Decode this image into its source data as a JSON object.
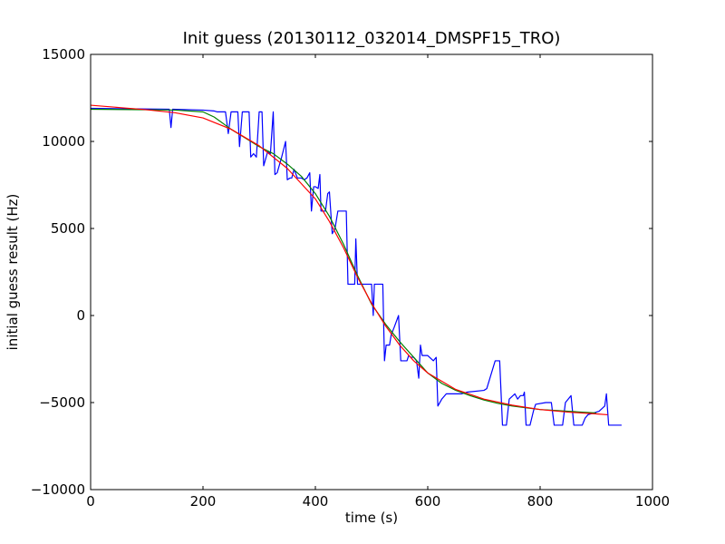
{
  "chart_data": {
    "type": "line",
    "title": "Init guess (20130112_032014_DMSPF15_TRO)",
    "xlabel": "time (s)",
    "ylabel": "initial guess result (Hz)",
    "xlim": [
      0,
      1000
    ],
    "ylim": [
      -10000,
      15000
    ],
    "x_ticks": [
      0,
      200,
      400,
      600,
      800,
      1000
    ],
    "y_ticks": [
      -10000,
      -5000,
      0,
      5000,
      10000,
      15000
    ],
    "x_tick_labels": [
      "0",
      "200",
      "400",
      "600",
      "800",
      "1000"
    ],
    "y_tick_labels": [
      "−10000",
      "−5000",
      "0",
      "5000",
      "10000",
      "15000"
    ],
    "grid": false,
    "series": [
      {
        "color": "#0000ff",
        "points": [
          [
            0,
            11900
          ],
          [
            140,
            11850
          ],
          [
            143,
            10800
          ],
          [
            146,
            11850
          ],
          [
            200,
            11800
          ],
          [
            220,
            11750
          ],
          [
            225,
            11700
          ],
          [
            240,
            11700
          ],
          [
            245,
            10450
          ],
          [
            250,
            11700
          ],
          [
            262,
            11700
          ],
          [
            265,
            9700
          ],
          [
            270,
            11700
          ],
          [
            282,
            11700
          ],
          [
            285,
            9100
          ],
          [
            290,
            9300
          ],
          [
            295,
            9100
          ],
          [
            300,
            11700
          ],
          [
            305,
            11700
          ],
          [
            308,
            8600
          ],
          [
            315,
            9400
          ],
          [
            320,
            9300
          ],
          [
            325,
            11700
          ],
          [
            328,
            8100
          ],
          [
            332,
            8200
          ],
          [
            340,
            9100
          ],
          [
            347,
            10000
          ],
          [
            350,
            7800
          ],
          [
            355,
            7900
          ],
          [
            358,
            7900
          ],
          [
            362,
            8400
          ],
          [
            368,
            7900
          ],
          [
            375,
            7900
          ],
          [
            380,
            7800
          ],
          [
            385,
            7900
          ],
          [
            390,
            8200
          ],
          [
            393,
            6000
          ],
          [
            397,
            7400
          ],
          [
            400,
            7400
          ],
          [
            405,
            7300
          ],
          [
            408,
            8100
          ],
          [
            410,
            6000
          ],
          [
            415,
            6000
          ],
          [
            418,
            6000
          ],
          [
            422,
            7000
          ],
          [
            425,
            7100
          ],
          [
            430,
            4700
          ],
          [
            435,
            5000
          ],
          [
            440,
            6000
          ],
          [
            455,
            6000
          ],
          [
            458,
            1800
          ],
          [
            462,
            1800
          ],
          [
            470,
            1800
          ],
          [
            472,
            4400
          ],
          [
            475,
            1800
          ],
          [
            480,
            1800
          ],
          [
            490,
            1800
          ],
          [
            500,
            1800
          ],
          [
            503,
            0
          ],
          [
            505,
            1800
          ],
          [
            520,
            1800
          ],
          [
            523,
            -2600
          ],
          [
            526,
            -1700
          ],
          [
            532,
            -1700
          ],
          [
            535,
            -1100
          ],
          [
            540,
            -700
          ],
          [
            548,
            0
          ],
          [
            552,
            -2600
          ],
          [
            558,
            -2600
          ],
          [
            563,
            -2600
          ],
          [
            566,
            -2300
          ],
          [
            570,
            -2400
          ],
          [
            575,
            -2400
          ],
          [
            580,
            -2600
          ],
          [
            584,
            -3600
          ],
          [
            587,
            -1700
          ],
          [
            590,
            -2300
          ],
          [
            600,
            -2300
          ],
          [
            610,
            -2600
          ],
          [
            615,
            -2400
          ],
          [
            618,
            -5200
          ],
          [
            625,
            -4800
          ],
          [
            633,
            -4500
          ],
          [
            660,
            -4500
          ],
          [
            670,
            -4400
          ],
          [
            700,
            -4300
          ],
          [
            705,
            -4200
          ],
          [
            720,
            -2600
          ],
          [
            728,
            -2600
          ],
          [
            733,
            -6300
          ],
          [
            740,
            -6300
          ],
          [
            745,
            -4800
          ],
          [
            755,
            -4500
          ],
          [
            760,
            -4800
          ],
          [
            765,
            -4600
          ],
          [
            770,
            -4600
          ],
          [
            772,
            -4400
          ],
          [
            775,
            -6300
          ],
          [
            782,
            -6300
          ],
          [
            788,
            -5500
          ],
          [
            792,
            -5100
          ],
          [
            810,
            -5000
          ],
          [
            820,
            -5000
          ],
          [
            825,
            -6300
          ],
          [
            840,
            -6300
          ],
          [
            845,
            -5000
          ],
          [
            855,
            -4600
          ],
          [
            860,
            -6300
          ],
          [
            875,
            -6300
          ],
          [
            880,
            -5900
          ],
          [
            885,
            -5700
          ],
          [
            895,
            -5600
          ],
          [
            905,
            -5500
          ],
          [
            915,
            -5200
          ],
          [
            918,
            -4500
          ],
          [
            922,
            -6300
          ],
          [
            945,
            -6300
          ]
        ]
      },
      {
        "color": "#008000",
        "points": [
          [
            0,
            11850
          ],
          [
            100,
            11820
          ],
          [
            150,
            11800
          ],
          [
            200,
            11700
          ],
          [
            220,
            11400
          ],
          [
            250,
            10700
          ],
          [
            275,
            10200
          ],
          [
            300,
            9700
          ],
          [
            325,
            9300
          ],
          [
            350,
            8700
          ],
          [
            375,
            8000
          ],
          [
            400,
            7000
          ],
          [
            425,
            5700
          ],
          [
            450,
            4100
          ],
          [
            475,
            2300
          ],
          [
            500,
            650
          ],
          [
            525,
            -500
          ],
          [
            550,
            -1500
          ],
          [
            575,
            -2400
          ],
          [
            600,
            -3300
          ],
          [
            625,
            -3900
          ],
          [
            650,
            -4300
          ],
          [
            675,
            -4600
          ],
          [
            700,
            -4850
          ],
          [
            725,
            -5050
          ],
          [
            750,
            -5200
          ],
          [
            775,
            -5300
          ],
          [
            800,
            -5400
          ],
          [
            825,
            -5450
          ],
          [
            850,
            -5500
          ],
          [
            875,
            -5550
          ],
          [
            900,
            -5600
          ]
        ]
      },
      {
        "color": "#ff0000",
        "points": [
          [
            0,
            12080
          ],
          [
            50,
            11950
          ],
          [
            100,
            11820
          ],
          [
            150,
            11650
          ],
          [
            200,
            11350
          ],
          [
            250,
            10700
          ],
          [
            300,
            9750
          ],
          [
            350,
            8450
          ],
          [
            400,
            6700
          ],
          [
            425,
            5400
          ],
          [
            450,
            3900
          ],
          [
            475,
            2200
          ],
          [
            500,
            700
          ],
          [
            525,
            -600
          ],
          [
            550,
            -1700
          ],
          [
            575,
            -2600
          ],
          [
            600,
            -3300
          ],
          [
            650,
            -4250
          ],
          [
            700,
            -4800
          ],
          [
            750,
            -5150
          ],
          [
            800,
            -5400
          ],
          [
            850,
            -5550
          ],
          [
            900,
            -5650
          ],
          [
            920,
            -5700
          ]
        ]
      }
    ]
  }
}
